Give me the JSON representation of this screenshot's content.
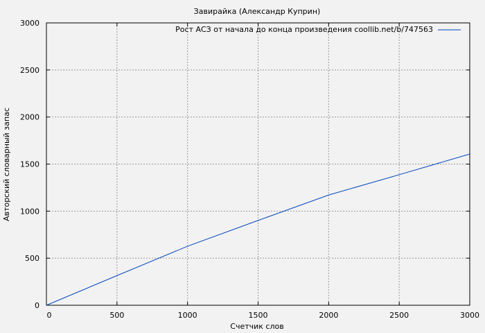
{
  "chart_data": {
    "type": "line",
    "title": "Завирайка (Александр Куприн)",
    "xlabel": "Счетчик слов",
    "ylabel": "Авторский словарный запас",
    "xlim": [
      0,
      3000
    ],
    "ylim": [
      0,
      3000
    ],
    "xticks": [
      0,
      500,
      1000,
      1500,
      2000,
      2500,
      3000
    ],
    "yticks": [
      0,
      500,
      1000,
      1500,
      2000,
      2500,
      3000
    ],
    "grid": true,
    "legend_position": "top-right",
    "series": [
      {
        "name": "Рост АСЗ от начала до конца произведения coollib.net/b/747563",
        "color": "#0044bb",
        "x": [
          0,
          500,
          1000,
          1500,
          2000,
          2500,
          3000
        ],
        "y": [
          0,
          315,
          627,
          901,
          1171,
          1387,
          1607
        ]
      }
    ]
  }
}
